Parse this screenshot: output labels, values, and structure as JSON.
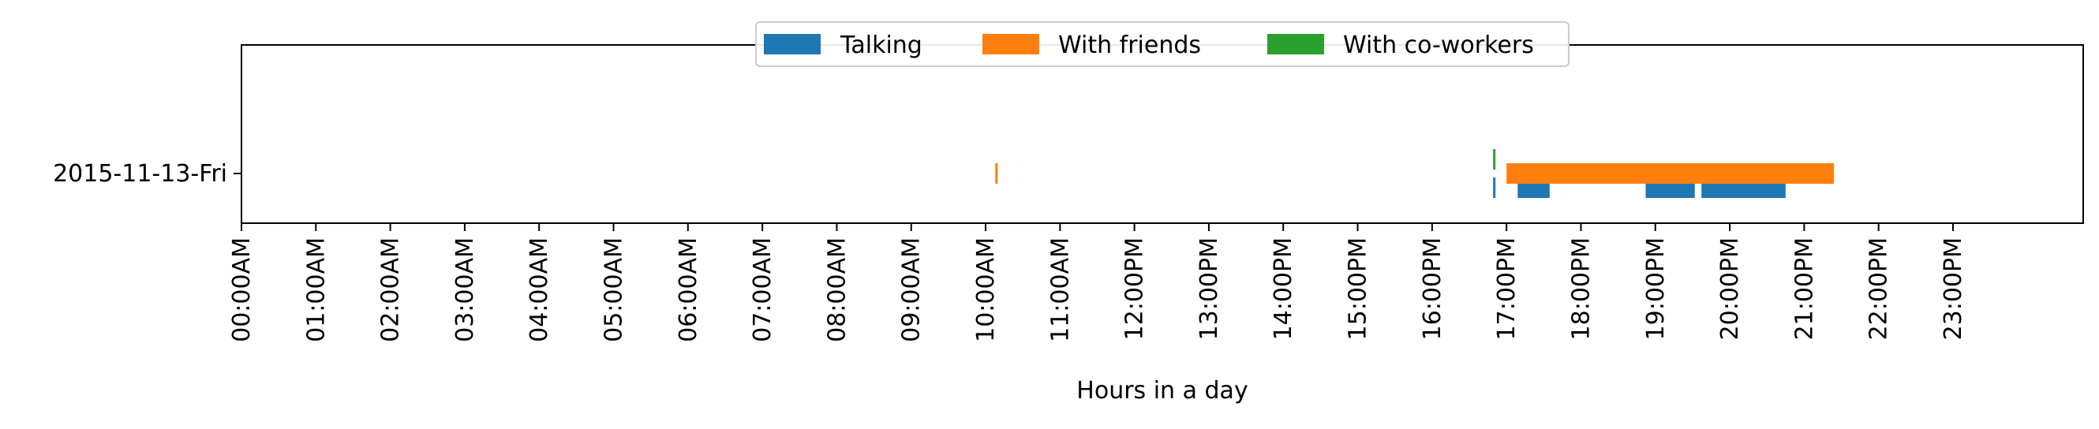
{
  "chart_data": {
    "type": "timeline",
    "xlabel": "Hours in a day",
    "xlim": [
      0,
      24
    ],
    "x_tick_labels": [
      "00:00AM",
      "01:00AM",
      "02:00AM",
      "03:00AM",
      "04:00AM",
      "05:00AM",
      "06:00AM",
      "07:00AM",
      "08:00AM",
      "09:00AM",
      "10:00AM",
      "11:00AM",
      "12:00PM",
      "13:00PM",
      "14:00PM",
      "15:00PM",
      "16:00PM",
      "17:00PM",
      "18:00PM",
      "19:00PM",
      "20:00PM",
      "21:00PM",
      "22:00PM",
      "23:00PM"
    ],
    "categories": [
      "2015-11-13-Fri"
    ],
    "legend_position": "top-center",
    "grid": false,
    "series": [
      {
        "name": "Talking",
        "color": "#1f77b4",
        "row_offset": "lower",
        "intervals": [
          {
            "start": 16.82,
            "end": 16.85
          },
          {
            "start": 17.15,
            "end": 17.58
          },
          {
            "start": 18.87,
            "end": 19.53
          },
          {
            "start": 19.62,
            "end": 20.75
          }
        ]
      },
      {
        "name": "With friends",
        "color": "#ff7f0e",
        "row_offset": "middle",
        "intervals": [
          {
            "start": 10.13,
            "end": 10.16
          },
          {
            "start": 17.0,
            "end": 21.4
          }
        ]
      },
      {
        "name": "With co-workers",
        "color": "#2ca02c",
        "row_offset": "upper",
        "intervals": [
          {
            "start": 16.82,
            "end": 16.85
          }
        ]
      }
    ]
  }
}
